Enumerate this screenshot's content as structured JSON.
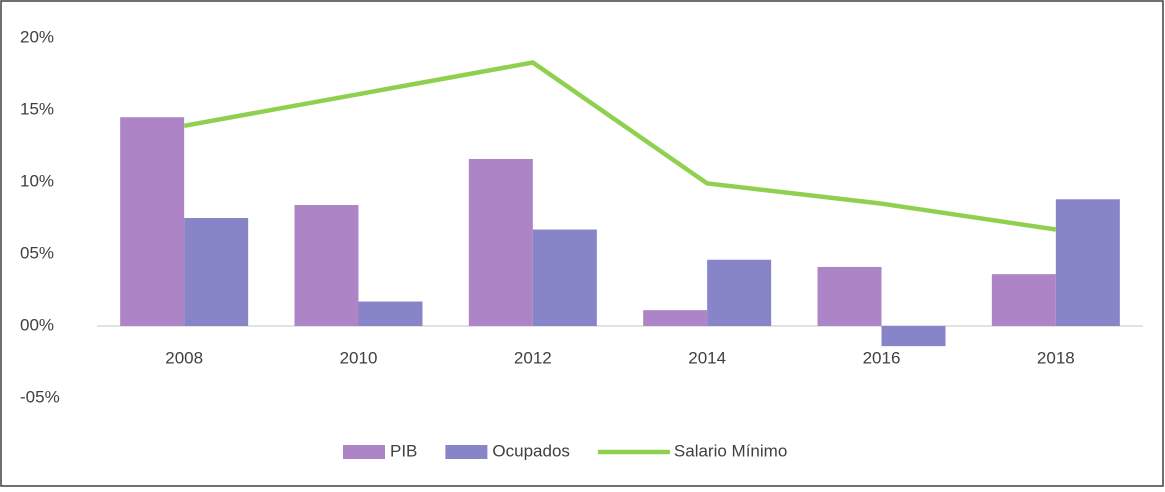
{
  "chart_data": {
    "type": "bar",
    "categories": [
      "2008",
      "2010",
      "2012",
      "2014",
      "2016",
      "2018"
    ],
    "series": [
      {
        "name": "PIB",
        "type": "bar",
        "color": "#ad84c6",
        "values": [
          14.5,
          8.4,
          11.6,
          1.1,
          4.1,
          3.6
        ]
      },
      {
        "name": "Ocupados",
        "type": "bar",
        "color": "#8784c7",
        "values": [
          7.5,
          1.7,
          6.7,
          4.6,
          -1.4,
          8.8
        ]
      },
      {
        "name": "Salario Mínimo",
        "type": "line",
        "color": "#8fd14f",
        "values": [
          13.9,
          16.1,
          18.3,
          9.9,
          8.5,
          6.7
        ]
      }
    ],
    "ylim": [
      -5,
      20
    ],
    "yticks": [
      {
        "value": -5,
        "label": "-05%"
      },
      {
        "value": 0,
        "label": "00%"
      },
      {
        "value": 5,
        "label": "05%"
      },
      {
        "value": 10,
        "label": "10%"
      },
      {
        "value": 15,
        "label": "15%"
      },
      {
        "value": 20,
        "label": "20%"
      }
    ],
    "legend": "bottom"
  }
}
